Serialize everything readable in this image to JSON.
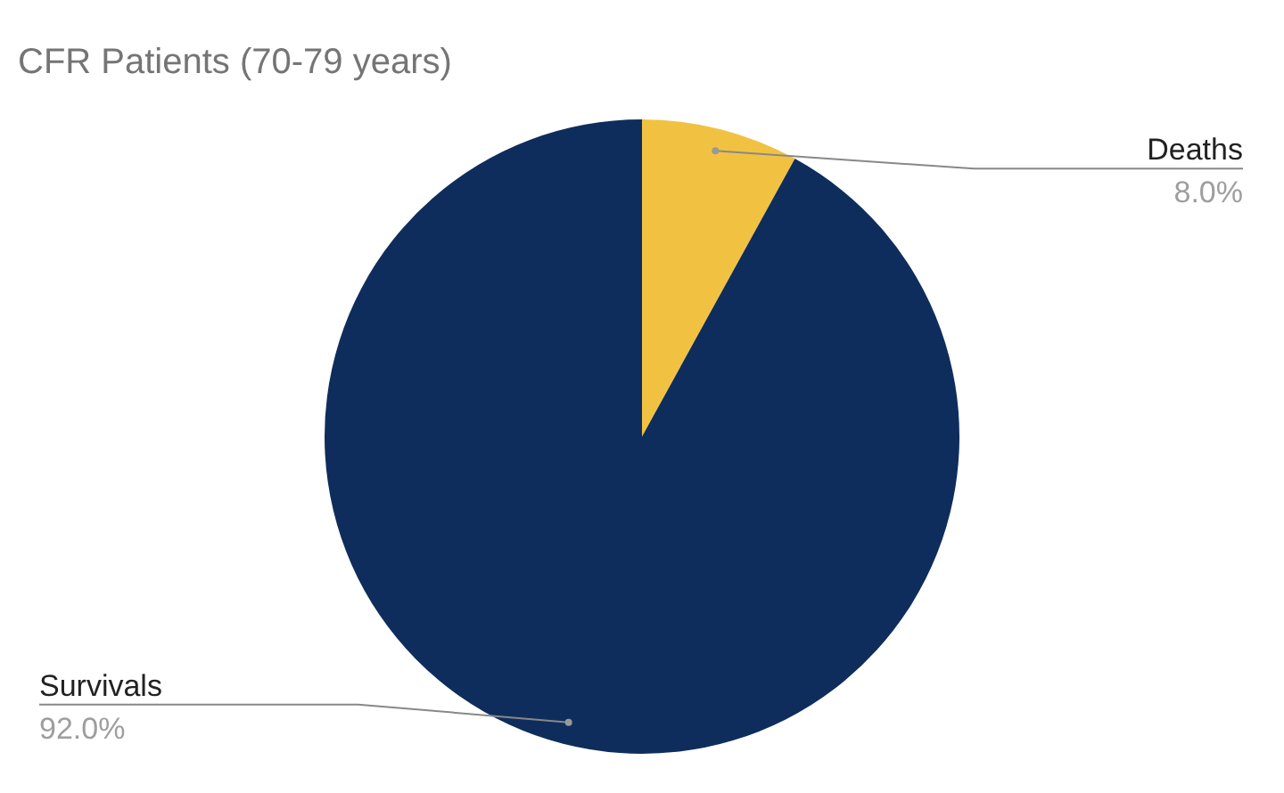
{
  "chart_data": {
    "type": "pie",
    "title": "CFR Patients (70-79 years)",
    "categories": [
      "Deaths",
      "Survivals"
    ],
    "values": [
      8,
      92
    ],
    "colors": [
      "#f1c242",
      "#0f2d5c"
    ],
    "value_labels": [
      "8.0%",
      "92.0%"
    ],
    "legend": false
  }
}
